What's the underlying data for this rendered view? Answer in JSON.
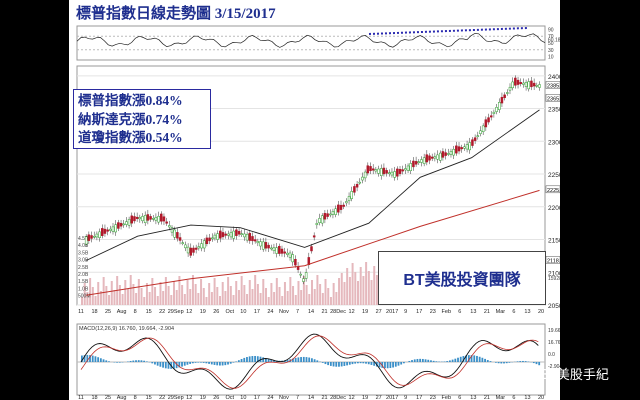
{
  "chart_data": {
    "type": "line",
    "title": "標普指數日線走勢圖 3/15/2017",
    "series": [
      {
        "x": [
          "2016-07-11",
          "2016-07-25",
          "2016-08-08",
          "2016-08-22",
          "2016-09-06",
          "2016-09-19",
          "2016-10-03",
          "2016-10-17",
          "2016-10-31",
          "2016-11-07",
          "2016-11-14",
          "2016-11-28",
          "2016-12-12",
          "2016-12-27",
          "2017-01-09",
          "2017-01-23",
          "2017-02-06",
          "2017-02-21",
          "2017-03-01",
          "2017-03-15"
        ],
        "values": [
          2150,
          2166,
          2183,
          2182,
          2130,
          2155,
          2160,
          2140,
          2126,
          2085,
          2178,
          2200,
          2258,
          2250,
          2270,
          2280,
          2295,
          2355,
          2390,
          2385
        ],
        "color": "#000000"
      },
      {
        "x": [
          "2016-07-11",
          "2016-08-08",
          "2016-09-06",
          "2016-10-03",
          "2016-11-07",
          "2016-12-12",
          "2017-01-09",
          "2017-02-06",
          "2017-03-15"
        ],
        "values": [
          2118,
          2155,
          2172,
          2168,
          2138,
          2175,
          2245,
          2275,
          2348
        ],
        "color": "#222222"
      },
      {
        "x": [
          "2016-07-11",
          "2016-09-06",
          "2016-11-07",
          "2017-01-09",
          "2017-03-15"
        ],
        "values": [
          2065,
          2090,
          2110,
          2170,
          2225
        ],
        "color": "#c0302a"
      }
    ],
    "ylim": [
      2050,
      2415
    ],
    "yticks": [
      "2400",
      "2350",
      "2300",
      "2250",
      "2200",
      "2150",
      "2100",
      "2050"
    ],
    "yticks_extra": [
      "2385.24",
      "2365.49",
      "2225.93",
      "2118.11"
    ],
    "xticks": [
      "11",
      "18",
      "25",
      "Aug",
      "8",
      "15",
      "22",
      "29Sep",
      "12",
      "19",
      "26",
      "Oct",
      "10",
      "17",
      "24",
      "Nov",
      "7",
      "14",
      "21",
      "28Dec",
      "12",
      "19",
      "27",
      "2017",
      "9",
      "17",
      "23",
      "Feb",
      "6",
      "13",
      "21",
      "Mar",
      "6",
      "13",
      "20"
    ],
    "rsi_ticks": [
      "90",
      "70",
      "60.18",
      "50",
      "30",
      "10"
    ],
    "volume_labels": [
      "4.5B",
      "4.0B",
      "3.5B",
      "3.0B",
      "2.5B",
      "2.0B",
      "1.5B",
      "1.0B",
      "500M"
    ],
    "volume_extra": "1592895",
    "macd_label": "MACD(12,26,9) 16.760, 19.664, -2.904",
    "macd_ticks": [
      "19.664",
      "16.760",
      "0.0",
      "-2.904"
    ],
    "changes": [
      "標普指數漲0.84%",
      "納斯達克漲0.74%",
      "道瓊指數漲0.54%"
    ],
    "team": "BT美股投資團隊",
    "watermark": "BT美股手紀",
    "colors": {
      "up": "#2a9a2a",
      "down": "#b0182a",
      "vol": "#e5b8bd",
      "macd_hist": "#3a8fc8",
      "title": "#1f2f8f"
    }
  }
}
